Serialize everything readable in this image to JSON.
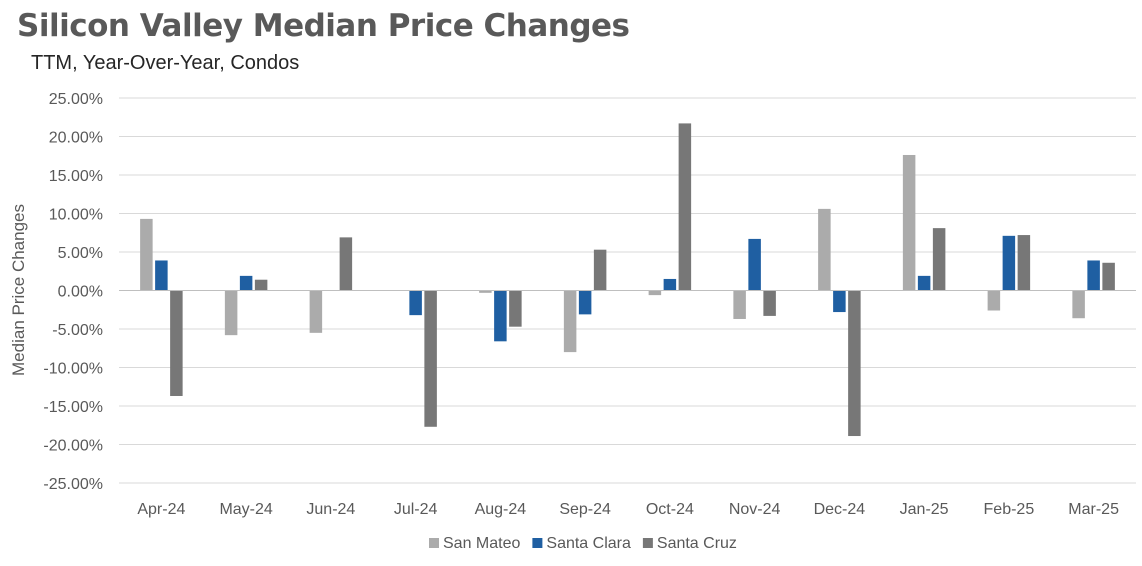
{
  "header": {
    "title": "Silicon Valley Median Price Changes",
    "subtitle": "TTM, Year-Over-Year,  Condos"
  },
  "chart_data": {
    "type": "bar",
    "title": "Silicon Valley Median Price Changes",
    "subtitle": "TTM, Year-Over-Year,  Condos",
    "xlabel": "",
    "ylabel": "Median Price Changes",
    "ylim": [
      -25,
      25
    ],
    "yticks": [
      25,
      20,
      15,
      10,
      5,
      0,
      -5,
      -10,
      -15,
      -20,
      -25
    ],
    "ytick_labels": [
      "25.00%",
      "20.00%",
      "15.00%",
      "10.00%",
      "5.00%",
      "0.00%",
      "-5.00%",
      "-10.00%",
      "-15.00%",
      "-20.00%",
      "-25.00%"
    ],
    "grid": true,
    "legend_position": "bottom",
    "categories": [
      "Apr-24",
      "May-24",
      "Jun-24",
      "Jul-24",
      "Aug-24",
      "Sep-24",
      "Oct-24",
      "Nov-24",
      "Dec-24",
      "Jan-25",
      "Feb-25",
      "Mar-25"
    ],
    "series": [
      {
        "name": "San Mateo",
        "color": "#ababab",
        "values": [
          9.3,
          -5.8,
          -5.5,
          0.0,
          -0.3,
          -8.0,
          -0.6,
          -3.7,
          10.6,
          17.6,
          -2.6,
          -3.6
        ]
      },
      {
        "name": "Santa Clara",
        "color": "#1f5fa2",
        "values": [
          3.9,
          1.9,
          0.0,
          -3.2,
          -6.6,
          -3.1,
          1.5,
          6.7,
          -2.8,
          1.9,
          7.1,
          3.9
        ]
      },
      {
        "name": "Santa Cruz",
        "color": "#777777",
        "values": [
          -13.7,
          1.4,
          6.9,
          -17.7,
          -4.7,
          5.3,
          21.7,
          -3.3,
          -18.9,
          8.1,
          7.2,
          3.6
        ]
      }
    ]
  }
}
